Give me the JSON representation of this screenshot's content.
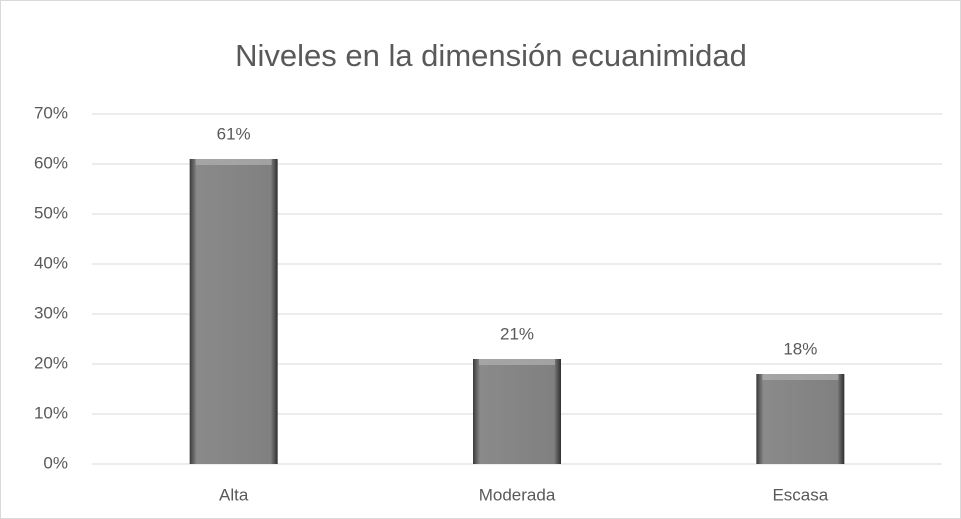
{
  "chart_data": {
    "type": "bar",
    "title": "Niveles en la dimensión ecuanimidad",
    "categories": [
      "Alta",
      "Moderada",
      "Escasa"
    ],
    "values": [
      61,
      21,
      18
    ],
    "value_labels": [
      "61%",
      "21%",
      "18%"
    ],
    "color": "#808080",
    "ylim": [
      0,
      70
    ],
    "yticks": [
      {
        "value": 0,
        "label": "0%"
      },
      {
        "value": 10,
        "label": "10%"
      },
      {
        "value": 20,
        "label": "20%"
      },
      {
        "value": 30,
        "label": "30%"
      },
      {
        "value": 40,
        "label": "40%"
      },
      {
        "value": 50,
        "label": "50%"
      },
      {
        "value": 60,
        "label": "60%"
      },
      {
        "value": 70,
        "label": "70%"
      }
    ],
    "grid": true
  }
}
